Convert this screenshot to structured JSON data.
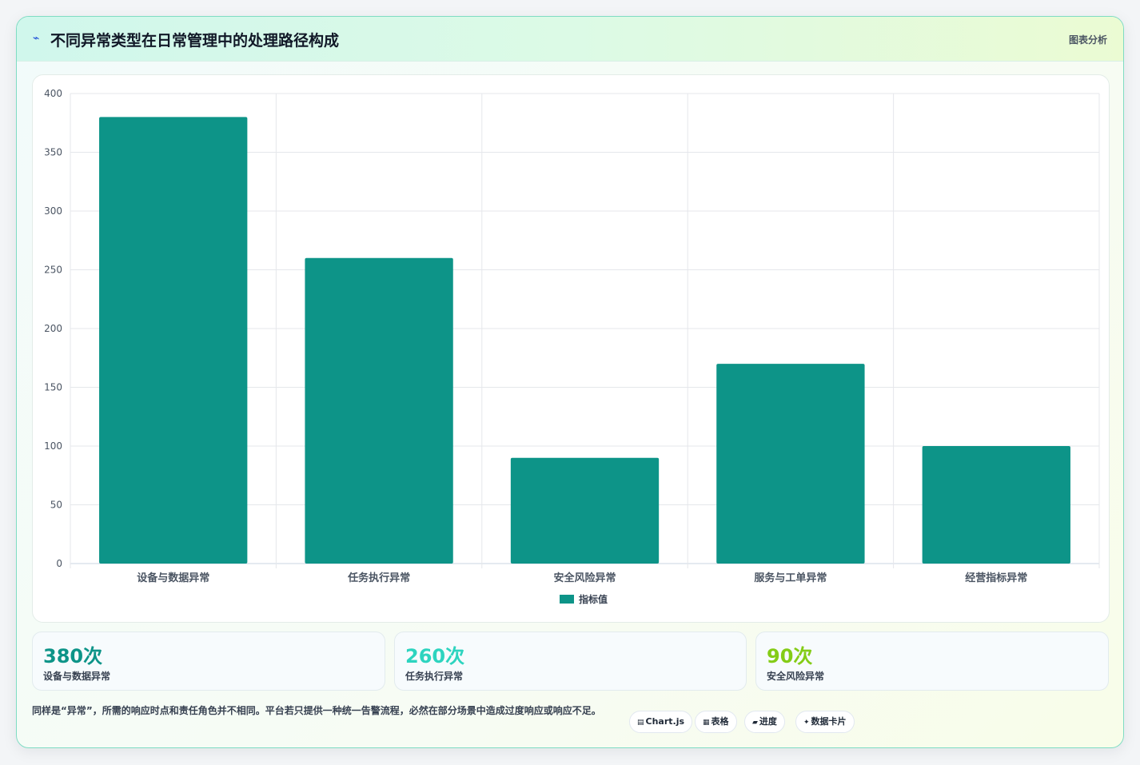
{
  "header": {
    "icon": "chart-line-icon",
    "icon_glyph": "⌁",
    "title": "不同异常类型在日常管理中的处理路径构成",
    "tag": "图表分析"
  },
  "chart_data": {
    "type": "bar",
    "categories": [
      "设备与数据异常",
      "任务执行异常",
      "安全风险异常",
      "服务与工单异常",
      "经营指标异常"
    ],
    "series": [
      {
        "name": "指标值",
        "values": [
          380,
          260,
          90,
          170,
          100
        ],
        "color": "#0d9488"
      }
    ],
    "ylim": [
      0,
      400
    ],
    "yticks": [
      0,
      50,
      100,
      150,
      200,
      250,
      300,
      350,
      400
    ],
    "grid": true,
    "legend": "bottom"
  },
  "stats": [
    {
      "value": "380次",
      "label": "设备与数据异常",
      "color": "#0d9488"
    },
    {
      "value": "260次",
      "label": "任务执行异常",
      "color": "#2dd4bf"
    },
    {
      "value": "90次",
      "label": "安全风险异常",
      "color": "#84cc16"
    }
  ],
  "footnote": "同样是“异常”，所需的响应时点和责任角色并不相同。平台若只提供一种统一告警流程，必然在部分场景中造成过度响应或响应不足。",
  "chips": [
    {
      "icon": "chart-icon",
      "glyph": "▤",
      "label": "Chart.js"
    },
    {
      "icon": "table-icon",
      "glyph": "▦",
      "label": "表格"
    },
    {
      "icon": "progress-icon",
      "glyph": "▰",
      "label": "进度"
    },
    {
      "icon": "sparkle-icon",
      "glyph": "✦",
      "label": "数据卡片"
    }
  ]
}
